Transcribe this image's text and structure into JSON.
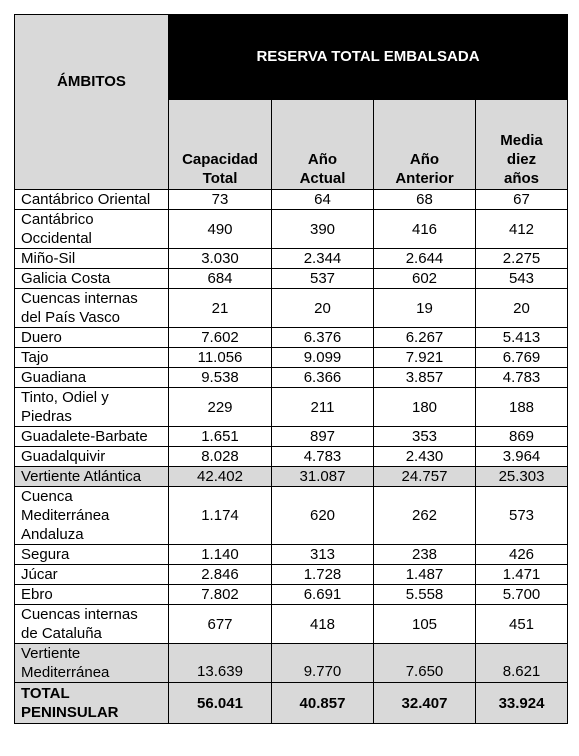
{
  "header": {
    "ambitos": "ÁMBITOS",
    "reserva": "RESERVA TOTAL EMBALSADA",
    "columns": [
      [
        "Capacidad",
        "Total"
      ],
      [
        "Año",
        "Actual"
      ],
      [
        "Año",
        "Anterior"
      ],
      [
        "Media",
        "diez",
        "años"
      ]
    ]
  },
  "rows": [
    {
      "name": [
        "Cantábrico Oriental"
      ],
      "values": [
        "73",
        "64",
        "68",
        "67"
      ]
    },
    {
      "name": [
        "Cantábrico",
        "Occidental"
      ],
      "values": [
        "490",
        "390",
        "416",
        "412"
      ]
    },
    {
      "name": [
        "Miño-Sil"
      ],
      "values": [
        "3.030",
        "2.344",
        "2.644",
        "2.275"
      ]
    },
    {
      "name": [
        "Galicia Costa"
      ],
      "values": [
        "684",
        "537",
        "602",
        "543"
      ]
    },
    {
      "name": [
        "Cuencas internas",
        "del País Vasco"
      ],
      "values": [
        "21",
        "20",
        "19",
        "20"
      ]
    },
    {
      "name": [
        "Duero"
      ],
      "values": [
        "7.602",
        "6.376",
        "6.267",
        "5.413"
      ]
    },
    {
      "name": [
        "Tajo"
      ],
      "values": [
        "11.056",
        "9.099",
        "7.921",
        "6.769"
      ]
    },
    {
      "name": [
        "Guadiana"
      ],
      "values": [
        "9.538",
        "6.366",
        "3.857",
        "4.783"
      ]
    },
    {
      "name": [
        "Tinto, Odiel y",
        "Piedras"
      ],
      "values": [
        "229",
        "211",
        "180",
        "188"
      ]
    },
    {
      "name": [
        "Guadalete-Barbate"
      ],
      "values": [
        "1.651",
        "897",
        "353",
        "869"
      ]
    },
    {
      "name": [
        "Guadalquivir"
      ],
      "values": [
        "8.028",
        "4.783",
        "2.430",
        "3.964"
      ]
    },
    {
      "name": [
        "Vertiente Atlántica"
      ],
      "values": [
        "42.402",
        "31.087",
        "24.757",
        "25.303"
      ],
      "style": "shaded"
    },
    {
      "name": [
        "Cuenca",
        "Mediterránea",
        "Andaluza"
      ],
      "values": [
        "1.174",
        "620",
        "262",
        "573"
      ]
    },
    {
      "name": [
        "Segura"
      ],
      "values": [
        "1.140",
        "313",
        "238",
        "426"
      ]
    },
    {
      "name": [
        "Júcar"
      ],
      "values": [
        "2.846",
        "1.728",
        "1.487",
        "1.471"
      ]
    },
    {
      "name": [
        "Ebro"
      ],
      "values": [
        "7.802",
        "6.691",
        "5.558",
        "5.700"
      ]
    },
    {
      "name": [
        "Cuencas internas",
        "de Cataluña"
      ],
      "values": [
        "677",
        "418",
        "105",
        "451"
      ]
    },
    {
      "name": [
        "Vertiente",
        "Mediterránea"
      ],
      "values": [
        "13.639",
        "9.770",
        "7.650",
        "8.621"
      ],
      "style": "shaded"
    },
    {
      "name": [
        "TOTAL",
        "PENINSULAR"
      ],
      "values": [
        "56.041",
        "40.857",
        "32.407",
        "33.924"
      ],
      "style": "total"
    }
  ],
  "colors": {
    "header_black": "#000000",
    "shade_gray": "#d9d9d9"
  }
}
